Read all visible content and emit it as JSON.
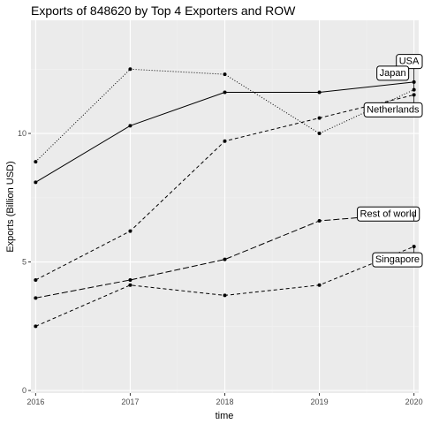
{
  "chart_data": {
    "type": "line",
    "title": "Exports of 848620 by Top 4 Exporters and ROW",
    "xlabel": "time",
    "ylabel": "Exports (Billion USD)",
    "x": [
      2016,
      2017,
      2018,
      2019,
      2020
    ],
    "xlim": [
      2015.95,
      2020.05
    ],
    "ylim": [
      -0.1,
      14.4
    ],
    "y_ticks": [
      0,
      5,
      10
    ],
    "grid": true,
    "series": [
      {
        "name": "USA",
        "linestyle": "dotdash",
        "values": [
          8.9,
          12.5,
          12.3,
          10.0,
          11.7
        ]
      },
      {
        "name": "Japan",
        "linestyle": "solid",
        "values": [
          8.1,
          10.3,
          11.6,
          11.6,
          12.0
        ]
      },
      {
        "name": "Netherlands",
        "linestyle": "dashed",
        "values": [
          4.3,
          6.2,
          9.7,
          10.6,
          11.5
        ]
      },
      {
        "name": "Rest of world",
        "linestyle": "longdash",
        "values": [
          3.6,
          4.3,
          5.1,
          6.6,
          6.9
        ]
      },
      {
        "name": "Singapore",
        "linestyle": "dashed",
        "values": [
          2.5,
          4.1,
          3.7,
          4.1,
          5.6
        ]
      }
    ]
  },
  "colors": {
    "panel_bg": "#ebebeb",
    "grid_major": "#ffffff",
    "grid_minor": "#f2f2f2",
    "line": "#000000"
  }
}
